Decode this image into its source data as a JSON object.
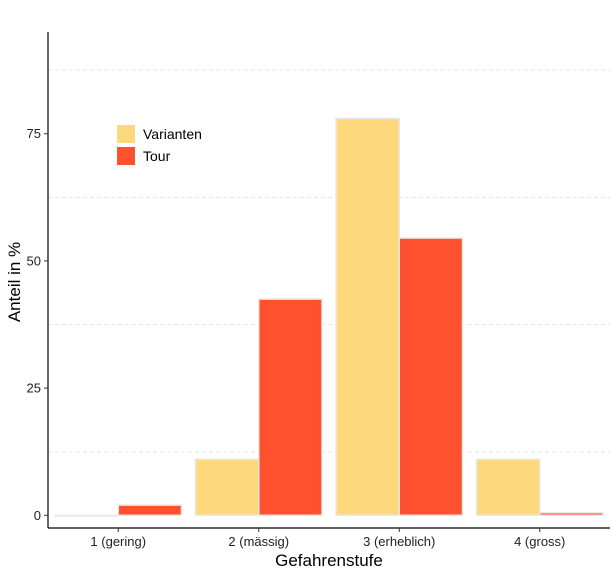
{
  "chart_data": {
    "type": "bar",
    "title": "",
    "xlabel": "Gefahrenstufe",
    "ylabel": "Anteil in %",
    "categories": [
      "1 (gering)",
      "2 (mässig)",
      "3 (erheblich)",
      "4 (gross)"
    ],
    "series": [
      {
        "name": "Varianten",
        "color": "#FDD97C",
        "values": [
          0,
          11,
          78,
          11
        ]
      },
      {
        "name": "Tour",
        "color": "#FF512D",
        "values": [
          2,
          42.5,
          54.5,
          0.5
        ]
      }
    ],
    "ylim": [
      -2.5,
      95
    ],
    "yticks": [
      0,
      25,
      50,
      75
    ],
    "yticks_labels": [
      "0",
      "25",
      "50",
      "75"
    ],
    "grid": "dashed horizontal minor",
    "legend_position": "top-left"
  }
}
